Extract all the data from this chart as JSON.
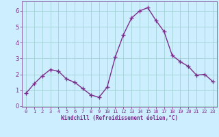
{
  "x": [
    0,
    1,
    2,
    3,
    4,
    5,
    6,
    7,
    8,
    9,
    10,
    11,
    12,
    13,
    14,
    15,
    16,
    17,
    18,
    19,
    20,
    21,
    22,
    23
  ],
  "y": [
    0.8,
    1.4,
    1.9,
    2.3,
    2.2,
    1.7,
    1.5,
    1.1,
    0.7,
    0.55,
    1.2,
    3.1,
    4.5,
    5.55,
    6.0,
    6.2,
    5.4,
    4.7,
    3.2,
    2.8,
    2.5,
    1.95,
    2.0,
    1.55
  ],
  "line_color": "#7B2D8B",
  "marker": "+",
  "marker_size": 4,
  "bg_color": "#cceeff",
  "grid_color": "#99cccc",
  "xlabel": "Windchill (Refroidissement éolien,°C)",
  "xlabel_color": "#7B2D8B",
  "tick_color": "#7B2D8B",
  "ylim": [
    -0.05,
    6.6
  ],
  "xlim": [
    -0.5,
    23.5
  ],
  "yticks": [
    0,
    1,
    2,
    3,
    4,
    5,
    6
  ],
  "xticks": [
    0,
    1,
    2,
    3,
    4,
    5,
    6,
    7,
    8,
    9,
    10,
    11,
    12,
    13,
    14,
    15,
    16,
    17,
    18,
    19,
    20,
    21,
    22,
    23
  ]
}
